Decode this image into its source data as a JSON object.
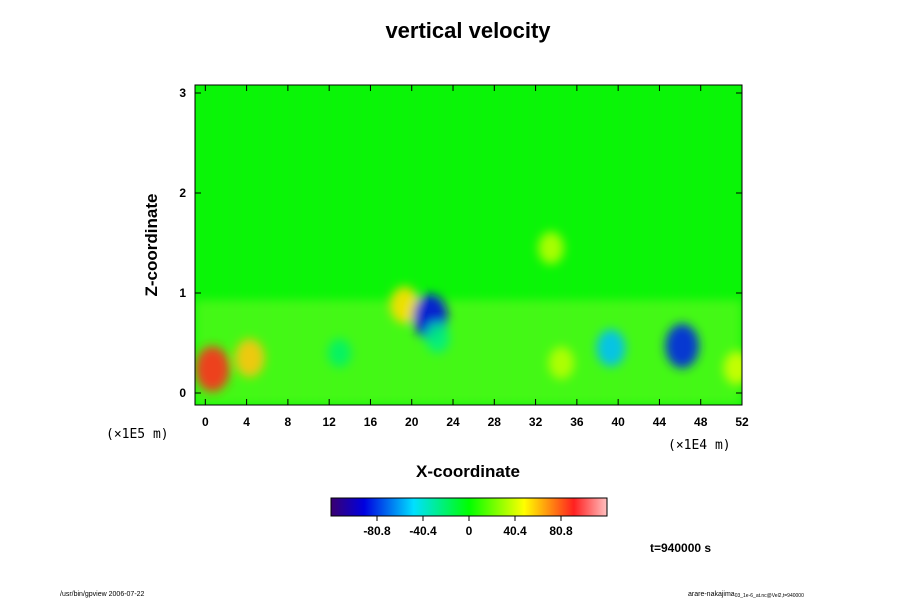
{
  "chart_data": {
    "type": "heatmap",
    "title": "vertical velocity",
    "xlabel": "X-coordinate",
    "ylabel": "Z-coordinate",
    "x_unit_label": "(×1E4 m)",
    "y_unit_label": "(×1E5 m)",
    "xlim": [
      -1,
      52
    ],
    "ylim": [
      -0.12,
      3.08
    ],
    "x_ticks": [
      0,
      4,
      8,
      12,
      16,
      20,
      24,
      28,
      32,
      36,
      40,
      44,
      48,
      52
    ],
    "x_tick_labels": [
      "0",
      "4",
      "8",
      "12",
      "16",
      "20",
      "24",
      "28",
      "32",
      "36",
      "40",
      "44",
      "48",
      "52"
    ],
    "y_ticks": [
      0,
      1,
      2,
      3
    ],
    "y_tick_labels": [
      "0",
      "1",
      "2",
      "3"
    ],
    "colorbar": {
      "range": [
        -121.2,
        121.2
      ],
      "ticks": [
        -80.8,
        -40.4,
        0,
        40.4,
        80.8
      ],
      "tick_labels": [
        "-80.8",
        "-40.4",
        "0",
        "40.4",
        "80.8"
      ]
    },
    "features": [
      {
        "x": 0.7,
        "z": 0.24,
        "value": 90
      },
      {
        "x": 4.3,
        "z": 0.35,
        "value": 60
      },
      {
        "x": 19.3,
        "z": 0.88,
        "value": 55
      },
      {
        "x": 21.8,
        "z": 0.76,
        "value": -90
      },
      {
        "x": 22.5,
        "z": 0.55,
        "value": -25
      },
      {
        "x": 39.3,
        "z": 0.45,
        "value": -55
      },
      {
        "x": 46.2,
        "z": 0.47,
        "value": -85
      },
      {
        "x": 33.5,
        "z": 1.45,
        "value": 35
      },
      {
        "x": 34.5,
        "z": 0.3,
        "value": 35
      },
      {
        "x": 51.5,
        "z": 0.25,
        "value": 40
      },
      {
        "x": 13.0,
        "z": 0.4,
        "value": -20
      }
    ]
  },
  "time_label": "t=940000 s",
  "footer_left": "/usr/bin/gpview 2006-07-22",
  "footer_right": "arare-nakajima",
  "footer_right_sub": "03_1e-6_at.nc@Vel2,t=940000"
}
